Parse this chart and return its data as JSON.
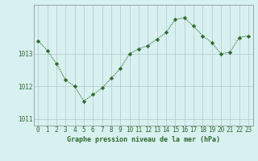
{
  "x": [
    0,
    1,
    2,
    3,
    4,
    5,
    6,
    7,
    8,
    9,
    10,
    11,
    12,
    13,
    14,
    15,
    16,
    17,
    18,
    19,
    20,
    21,
    22,
    23
  ],
  "y": [
    1013.4,
    1013.1,
    1012.7,
    1012.2,
    1012.0,
    1011.55,
    1011.75,
    1011.95,
    1012.25,
    1012.55,
    1013.0,
    1013.15,
    1013.25,
    1013.45,
    1013.65,
    1014.05,
    1014.1,
    1013.85,
    1013.55,
    1013.35,
    1013.0,
    1013.05,
    1013.5,
    1013.55
  ],
  "line_color": "#2d6a2d",
  "marker": "D",
  "marker_size": 2.2,
  "bg_color": "#d8f0f0",
  "grid_color": "#b0c8c8",
  "xlabel": "Graphe pression niveau de la mer (hPa)",
  "ylim": [
    1010.8,
    1014.5
  ],
  "yticks": [
    1011,
    1012,
    1013
  ],
  "title_color": "#2d6a2d",
  "xlabel_fontsize": 6.0,
  "tick_fontsize": 5.5
}
